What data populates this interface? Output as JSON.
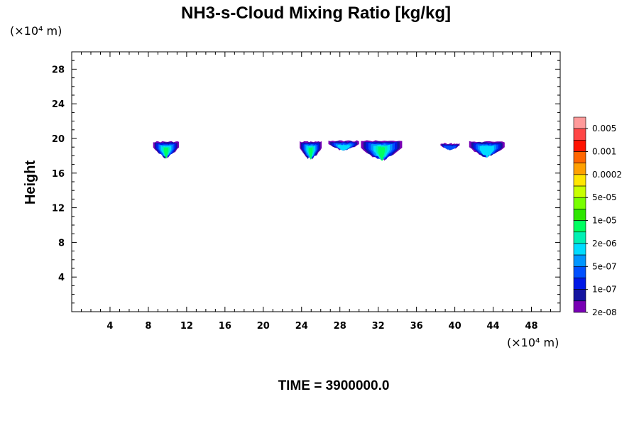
{
  "chart_data": {
    "type": "contour",
    "title": "NH3-s-Cloud Mixing Ratio [kg/kg]",
    "ylabel": "Height",
    "x_unit": "(×10⁴ m)",
    "y_unit": "(×10⁴ m)",
    "xlim": [
      0,
      51
    ],
    "ylim": [
      0,
      30
    ],
    "x_ticks": [
      4,
      8,
      12,
      16,
      20,
      24,
      28,
      32,
      36,
      40,
      44,
      48
    ],
    "y_ticks": [
      4,
      8,
      12,
      16,
      20,
      24,
      28
    ],
    "time_label": "TIME = 3900000.0",
    "colorbar": {
      "labels": [
        "0.005",
        "0.001",
        "0.0002",
        "5e-05",
        "1e-05",
        "2e-06",
        "5e-07",
        "1e-07",
        "2e-08"
      ],
      "colors_top_to_bottom": [
        "#ff9a9a",
        "#ff4646",
        "#ff1200",
        "#ff6600",
        "#ffa000",
        "#ffe600",
        "#c8ff00",
        "#78ff00",
        "#2ee600",
        "#00ff60",
        "#00f0b4",
        "#00dcff",
        "#0096ff",
        "#0050ff",
        "#0018e6",
        "#1414a0",
        "#7800b4"
      ]
    },
    "clouds": [
      {
        "x": [
          8.5,
          11.2
        ],
        "y": [
          17.6,
          19.7
        ],
        "peak": "2e-06"
      },
      {
        "x": [
          23.8,
          26.1
        ],
        "y": [
          17.4,
          19.7
        ],
        "peak": "2e-06"
      },
      {
        "x": [
          26.8,
          30.0
        ],
        "y": [
          18.5,
          19.8
        ],
        "peak": "5e-07"
      },
      {
        "x": [
          30.2,
          34.5
        ],
        "y": [
          17.3,
          19.8
        ],
        "peak": "2e-06"
      },
      {
        "x": [
          38.5,
          40.5
        ],
        "y": [
          18.6,
          19.5
        ],
        "peak": "1e-07"
      },
      {
        "x": [
          41.5,
          45.2
        ],
        "y": [
          17.7,
          19.7
        ],
        "peak": "5e-07"
      }
    ]
  }
}
